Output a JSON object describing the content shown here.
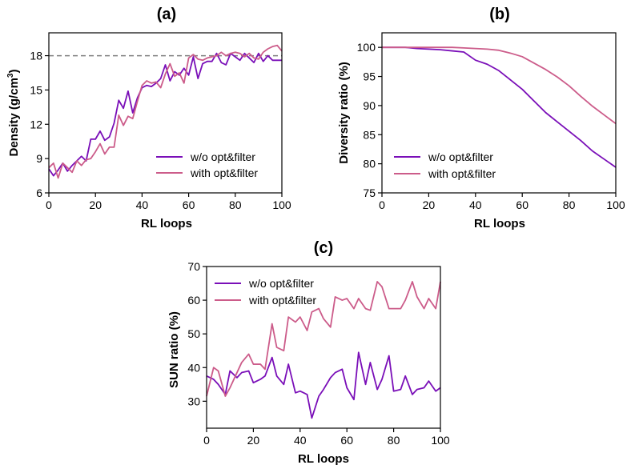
{
  "chart_data": [
    {
      "type": "line",
      "panel_label": "(a)",
      "xlabel": "RL loops",
      "ylabel": "Density (g/cm³)",
      "ylabel_main": "Density (g/cm",
      "ylabel_sup": "3",
      "ylabel_end": ")",
      "xlim": [
        0,
        100
      ],
      "ylim": [
        6,
        20
      ],
      "xticks": [
        0,
        20,
        40,
        60,
        80,
        100
      ],
      "yticks": [
        6,
        9,
        12,
        15,
        18
      ],
      "reference_line": {
        "y": 18,
        "style": "dashed",
        "color": "#808080"
      },
      "legend_position": "lower-right",
      "x": [
        0,
        2,
        4,
        6,
        8,
        10,
        12,
        14,
        16,
        18,
        20,
        22,
        24,
        26,
        28,
        30,
        32,
        34,
        36,
        38,
        40,
        42,
        44,
        46,
        48,
        50,
        52,
        54,
        56,
        58,
        60,
        62,
        64,
        66,
        68,
        70,
        72,
        74,
        76,
        78,
        80,
        82,
        84,
        86,
        88,
        90,
        92,
        94,
        96,
        98,
        100
      ],
      "series": [
        {
          "name": "w/o opt&filter",
          "color": "#7a0fb8",
          "values": [
            8.1,
            7.5,
            8.0,
            8.6,
            7.9,
            8.4,
            8.8,
            9.2,
            8.8,
            10.7,
            10.7,
            11.4,
            10.6,
            10.9,
            12.1,
            14.1,
            13.4,
            14.9,
            13.0,
            14.3,
            15.2,
            15.4,
            15.3,
            15.6,
            16.0,
            17.2,
            15.8,
            16.6,
            16.3,
            16.9,
            16.3,
            17.9,
            16.0,
            17.3,
            17.5,
            17.5,
            18.2,
            17.4,
            17.2,
            18.2,
            17.9,
            17.6,
            18.2,
            17.8,
            17.4,
            18.2,
            17.5,
            18.0,
            17.6,
            17.6,
            17.6
          ]
        },
        {
          "name": "with opt&filter",
          "color": "#cc5c8a",
          "values": [
            8.2,
            8.6,
            7.3,
            8.6,
            8.2,
            7.8,
            8.8,
            8.4,
            8.9,
            9.0,
            9.6,
            10.3,
            9.4,
            10.0,
            10.0,
            12.8,
            11.9,
            12.7,
            12.5,
            14.0,
            15.4,
            15.8,
            15.6,
            15.7,
            15.2,
            16.4,
            17.3,
            16.2,
            16.5,
            15.6,
            17.8,
            18.1,
            17.7,
            17.6,
            17.8,
            17.9,
            18.0,
            18.3,
            18.0,
            18.2,
            18.3,
            18.2,
            17.9,
            18.2,
            17.8,
            17.7,
            18.3,
            18.6,
            18.8,
            18.9,
            18.4
          ]
        }
      ]
    },
    {
      "type": "line",
      "panel_label": "(b)",
      "xlabel": "RL loops",
      "ylabel": "Diversity ratio (%)",
      "xlim": [
        0,
        100
      ],
      "ylim": [
        75,
        102.5
      ],
      "xticks": [
        0,
        20,
        40,
        60,
        80,
        100
      ],
      "yticks": [
        75,
        80,
        85,
        90,
        95,
        100
      ],
      "legend_position": "lower-left",
      "x": [
        0,
        5,
        10,
        15,
        20,
        25,
        30,
        35,
        40,
        45,
        50,
        55,
        60,
        65,
        70,
        75,
        80,
        85,
        90,
        95,
        100
      ],
      "series": [
        {
          "name": "w/o opt&filter",
          "color": "#7a0fb8",
          "values": [
            100,
            100,
            100,
            99.8,
            99.7,
            99.6,
            99.4,
            99.2,
            97.8,
            97.1,
            96.0,
            94.4,
            92.8,
            90.8,
            88.8,
            87.2,
            85.6,
            84.0,
            82.2,
            80.8,
            79.4
          ]
        },
        {
          "name": "with opt&filter",
          "color": "#cc5c8a",
          "values": [
            100,
            100,
            100,
            100,
            100,
            100,
            100,
            99.9,
            99.8,
            99.7,
            99.5,
            99.0,
            98.4,
            97.3,
            96.2,
            94.9,
            93.4,
            91.6,
            89.9,
            88.4,
            86.9
          ]
        }
      ]
    },
    {
      "type": "line",
      "panel_label": "(c)",
      "xlabel": "RL loops",
      "ylabel": "SUN ratio (%)",
      "xlim": [
        0,
        100
      ],
      "ylim": [
        22,
        70
      ],
      "xticks": [
        0,
        20,
        40,
        60,
        80,
        100
      ],
      "yticks": [
        30,
        40,
        50,
        60,
        70
      ],
      "legend_position": "upper-left",
      "x": [
        0,
        3,
        5,
        8,
        10,
        13,
        15,
        18,
        20,
        23,
        25,
        28,
        30,
        33,
        35,
        38,
        40,
        43,
        45,
        48,
        50,
        53,
        55,
        58,
        60,
        63,
        65,
        68,
        70,
        73,
        75,
        78,
        80,
        83,
        85,
        88,
        90,
        93,
        95,
        98,
        100
      ],
      "series": [
        {
          "name": "w/o opt&filter",
          "color": "#7a0fb8",
          "values": [
            37.5,
            36.5,
            35.0,
            32.0,
            39.0,
            37.0,
            38.5,
            39.0,
            35.5,
            36.5,
            37.5,
            43.0,
            37.5,
            35.0,
            41.0,
            32.5,
            33.0,
            32.0,
            25.0,
            31.5,
            33.5,
            37.0,
            38.5,
            39.5,
            34.0,
            30.5,
            44.5,
            35.0,
            41.5,
            33.5,
            36.5,
            43.5,
            33.0,
            33.5,
            37.5,
            32.0,
            33.5,
            34.0,
            36.0,
            33.0,
            34.0
          ]
        },
        {
          "name": "with opt&filter",
          "color": "#cc5c8a",
          "values": [
            31.5,
            40.0,
            39.0,
            31.5,
            34.0,
            38.5,
            41.5,
            44.0,
            41.0,
            41.0,
            39.5,
            53.0,
            46.0,
            45.0,
            55.0,
            53.5,
            55.0,
            51.0,
            56.5,
            57.5,
            54.5,
            52.0,
            61.0,
            60.0,
            60.5,
            57.5,
            60.5,
            57.5,
            57.0,
            65.5,
            64.0,
            57.5,
            57.5,
            57.5,
            60.0,
            65.5,
            61.0,
            57.5,
            60.5,
            57.5,
            65.5
          ]
        }
      ]
    }
  ]
}
